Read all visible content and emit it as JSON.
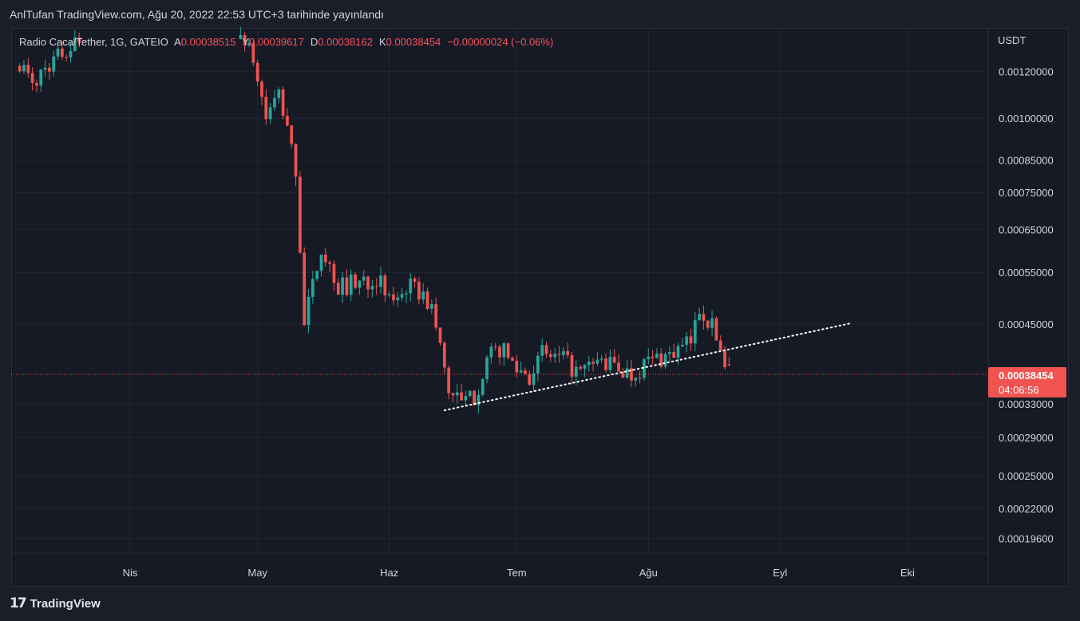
{
  "header": {
    "published": "AnlTufan TradingView.com, Ağu 20, 2022 22:53 UTC+3 tarihinde yayınlandı"
  },
  "legend": {
    "symbol": "Radio Caca/Tether, 1G, GATEIO",
    "o_label": "A",
    "o_value": "0.00038515",
    "h_label": "Y",
    "h_value": "0.00039617",
    "l_label": "D",
    "l_value": "0.00038162",
    "c_label": "K",
    "c_value": "0.00038454",
    "change": "−0.00000024 (−0.06%)"
  },
  "price_axis": {
    "currency": "USDT",
    "ticks": [
      "0.00120000",
      "0.00100000",
      "0.00085000",
      "0.00075000",
      "0.00065000",
      "0.00055000",
      "0.00045000",
      "0.00033000",
      "0.00029000",
      "0.00025000",
      "0.00022000",
      "0.00019600"
    ]
  },
  "last_price": {
    "value": "0.00038454",
    "countdown": "04:06:56"
  },
  "time_axis": {
    "labels": [
      "Nis",
      "May",
      "Haz",
      "Tem",
      "Ağu",
      "Eyl",
      "Eki"
    ]
  },
  "footer": {
    "brand": "TradingView",
    "logo_glyph": "17"
  },
  "colors": {
    "up": "#26a69a",
    "down": "#ef5350",
    "background": "#161a25",
    "grid": "#232734",
    "trendline": "#ffffff",
    "last_price_badge": "#f05350"
  },
  "chart_data": {
    "type": "candlestick",
    "symbol": "Radio Caca/Tether",
    "interval": "1G",
    "exchange": "GATEIO",
    "scale": "log",
    "x_range": [
      "2022-03-04",
      "2022-10-20"
    ],
    "y_range": [
      0.000185,
      0.00142
    ],
    "current": {
      "open": 0.00038515,
      "high": 0.00039617,
      "low": 0.00038162,
      "close": 0.00038454
    },
    "trendline": [
      {
        "date": "2022-06-14",
        "price": 0.000322
      },
      {
        "date": "2022-09-18",
        "price": 0.000452
      }
    ],
    "anchors": [
      {
        "date": "2022-03-06",
        "close": 0.00125
      },
      {
        "date": "2022-03-09",
        "close": 0.00113
      },
      {
        "date": "2022-03-12",
        "close": 0.00122
      },
      {
        "date": "2022-03-18",
        "close": 0.00132
      },
      {
        "date": "2022-03-21",
        "close": 0.00139
      },
      {
        "date": "2022-04-27",
        "close": 0.00139
      },
      {
        "date": "2022-04-30",
        "close": 0.00125
      },
      {
        "date": "2022-05-03",
        "close": 0.001
      },
      {
        "date": "2022-05-06",
        "close": 0.0011
      },
      {
        "date": "2022-05-08",
        "close": 0.00095
      },
      {
        "date": "2022-05-10",
        "close": 0.00082
      },
      {
        "date": "2022-05-12",
        "close": 0.00045
      },
      {
        "date": "2022-05-14",
        "close": 0.00052
      },
      {
        "date": "2022-05-16",
        "close": 0.00061
      },
      {
        "date": "2022-05-18",
        "close": 0.00056
      },
      {
        "date": "2022-05-20",
        "close": 0.00052
      },
      {
        "date": "2022-05-25",
        "close": 0.00053
      },
      {
        "date": "2022-05-29",
        "close": 0.00054
      },
      {
        "date": "2022-06-01",
        "close": 0.00049
      },
      {
        "date": "2022-06-05",
        "close": 0.00052
      },
      {
        "date": "2022-06-08",
        "close": 0.00051
      },
      {
        "date": "2022-06-11",
        "close": 0.00048
      },
      {
        "date": "2022-06-13",
        "close": 0.00041
      },
      {
        "date": "2022-06-15",
        "close": 0.00035
      },
      {
        "date": "2022-06-18",
        "close": 0.00033
      },
      {
        "date": "2022-06-21",
        "close": 0.00034
      },
      {
        "date": "2022-06-24",
        "close": 0.00039
      },
      {
        "date": "2022-06-27",
        "close": 0.00041
      },
      {
        "date": "2022-07-01",
        "close": 0.00038
      },
      {
        "date": "2022-07-04",
        "close": 0.00037
      },
      {
        "date": "2022-07-07",
        "close": 0.0004
      },
      {
        "date": "2022-07-12",
        "close": 0.00039
      },
      {
        "date": "2022-07-16",
        "close": 0.00037
      },
      {
        "date": "2022-07-20",
        "close": 0.00039
      },
      {
        "date": "2022-07-25",
        "close": 0.00038
      },
      {
        "date": "2022-07-28",
        "close": 0.00037
      },
      {
        "date": "2022-08-01",
        "close": 0.00039
      },
      {
        "date": "2022-08-06",
        "close": 0.0004
      },
      {
        "date": "2022-08-09",
        "close": 0.00041
      },
      {
        "date": "2022-08-11",
        "close": 0.00042
      },
      {
        "date": "2022-08-13",
        "close": 0.00048
      },
      {
        "date": "2022-08-15",
        "close": 0.00046
      },
      {
        "date": "2022-08-17",
        "close": 0.00043
      },
      {
        "date": "2022-08-19",
        "close": 0.000386
      },
      {
        "date": "2022-08-20",
        "close": 0.00038454
      }
    ]
  }
}
